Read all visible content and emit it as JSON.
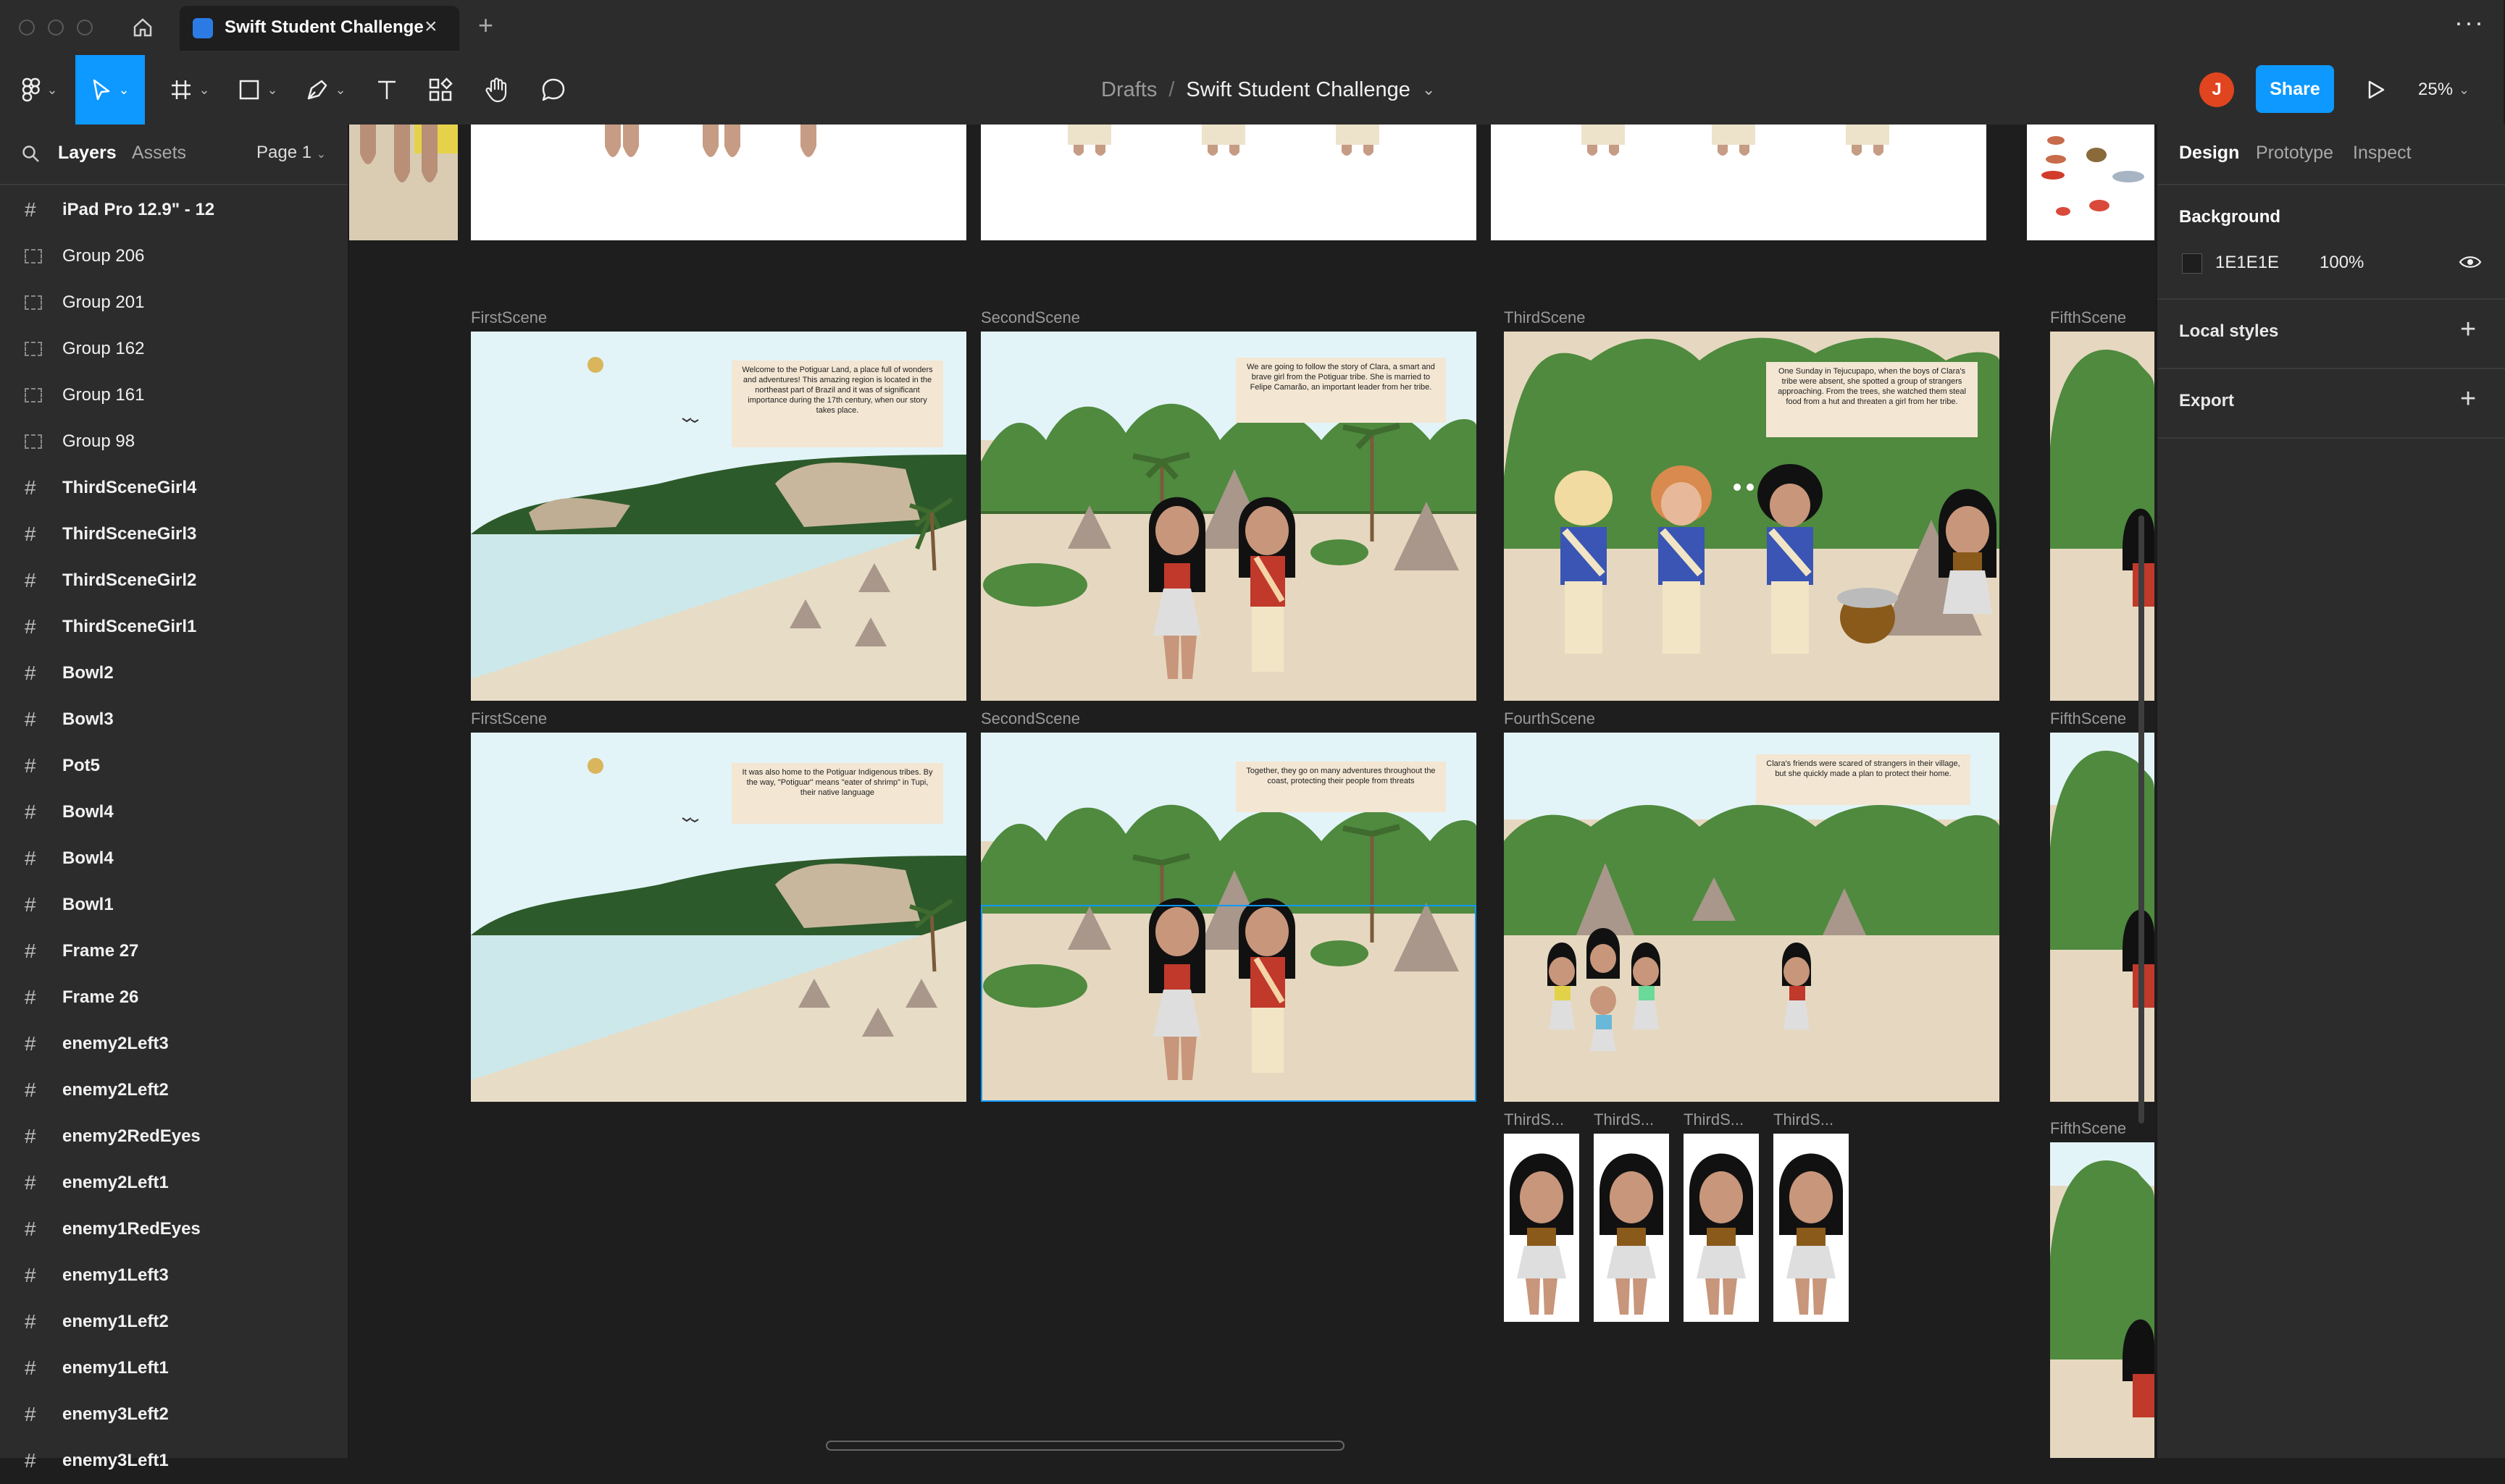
{
  "window": {
    "tab_title": "Swift Student Challenge"
  },
  "toolbar": {
    "breadcrumb_root": "Drafts",
    "breadcrumb_sep": "/",
    "file_name": "Swift Student Challenge",
    "avatar_initial": "J",
    "share_label": "Share",
    "zoom": "25%"
  },
  "left_panel": {
    "tabs": [
      "Layers",
      "Assets"
    ],
    "page_selector": "Page 1",
    "layers": [
      {
        "name": "iPad Pro 12.9\" - 12",
        "kind": "frame"
      },
      {
        "name": "Group 206",
        "kind": "group"
      },
      {
        "name": "Group 201",
        "kind": "group"
      },
      {
        "name": "Group 162",
        "kind": "group"
      },
      {
        "name": "Group 161",
        "kind": "group"
      },
      {
        "name": "Group 98",
        "kind": "group"
      },
      {
        "name": "ThirdSceneGirl4",
        "kind": "frame"
      },
      {
        "name": "ThirdSceneGirl3",
        "kind": "frame"
      },
      {
        "name": "ThirdSceneGirl2",
        "kind": "frame"
      },
      {
        "name": "ThirdSceneGirl1",
        "kind": "frame"
      },
      {
        "name": "Bowl2",
        "kind": "frame"
      },
      {
        "name": "Bowl3",
        "kind": "frame"
      },
      {
        "name": "Pot5",
        "kind": "frame"
      },
      {
        "name": "Bowl4",
        "kind": "frame"
      },
      {
        "name": "Bowl4",
        "kind": "frame"
      },
      {
        "name": "Bowl1",
        "kind": "frame"
      },
      {
        "name": "Frame 27",
        "kind": "frame"
      },
      {
        "name": "Frame 26",
        "kind": "frame"
      },
      {
        "name": "enemy2Left3",
        "kind": "frame"
      },
      {
        "name": "enemy2Left2",
        "kind": "frame"
      },
      {
        "name": "enemy2RedEyes",
        "kind": "frame"
      },
      {
        "name": "enemy2Left1",
        "kind": "frame"
      },
      {
        "name": "enemy1RedEyes",
        "kind": "frame"
      },
      {
        "name": "enemy1Left3",
        "kind": "frame"
      },
      {
        "name": "enemy1Left2",
        "kind": "frame"
      },
      {
        "name": "enemy1Left1",
        "kind": "frame"
      },
      {
        "name": "enemy3Left2",
        "kind": "frame"
      },
      {
        "name": "enemy3Left1",
        "kind": "frame"
      }
    ]
  },
  "right_panel": {
    "tabs": [
      "Design",
      "Prototype",
      "Inspect"
    ],
    "background_title": "Background",
    "background_hex": "1E1E1E",
    "background_opacity": "100%",
    "local_styles": "Local styles",
    "export": "Export"
  },
  "canvas": {
    "frame_labels": {
      "r1c1": "FirstScene",
      "r1c2": "SecondScene",
      "r1c3": "ThirdScene",
      "r1c4": "FifthScene",
      "r2c1": "FirstScene",
      "r2c2": "SecondScene",
      "r2c3": "FourthScene",
      "r2c4": "FifthScene",
      "girl1": "ThirdS...",
      "girl2": "ThirdS...",
      "girl3": "ThirdS...",
      "girl4": "ThirdS...",
      "r3c4": "FifthScene"
    },
    "scene_texts": {
      "first_a": "Welcome to the Potiguar Land, a place full of wonders and adventures! This amazing region is located in the northeast part of Brazil and it was of significant importance during the 17th century, when our story takes place.",
      "second_a": "We are going to follow the story of Clara, a smart and brave girl from the Potiguar tribe. She is married to Felipe Camarão, an important leader from her tribe.",
      "third": "One Sunday in Tejucupapo, when the boys of Clara's tribe were absent, she spotted a group of strangers approaching. From the trees, she watched them steal food from a hut and threaten a girl from her tribe.",
      "first_b": "It was also home to the Potiguar Indigenous tribes. By the way, \"Potiguar\" means \"eater of shrimp\" in Tupi, their native language",
      "second_b": "Together, they go on many adventures throughout the coast, protecting their people from threats",
      "fourth": "Clara's friends were scared of strangers in their village, but she quickly made a plan to protect their home."
    }
  },
  "colors": {
    "accent": "#0d99ff",
    "toolbar_bg": "#2c2c2c",
    "canvas_bg": "#1e1e1e",
    "avatar": "#e0451f"
  }
}
